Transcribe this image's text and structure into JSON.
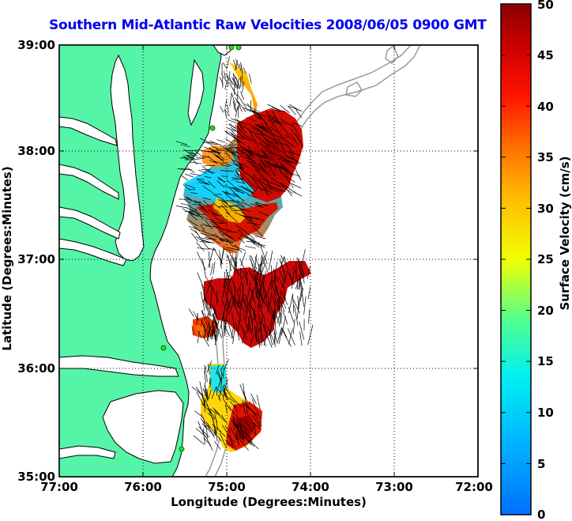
{
  "title": "Southern Mid-Atlantic Raw Velocities 2008/06/05 0900 GMT",
  "x_axis": {
    "label": "Longitude (Degrees:Minutes)",
    "ticks": [
      "77:00",
      "76:00",
      "75:00",
      "74:00",
      "73:00",
      "72:00"
    ]
  },
  "y_axis": {
    "label": "Latitude (Degrees:Minutes)",
    "ticks": [
      "39:00",
      "38:00",
      "37:00",
      "36:00",
      "35:00"
    ]
  },
  "colorbar": {
    "label": "Surface Velocity (cm/s)",
    "ticks": [
      "50",
      "45",
      "40",
      "35",
      "30",
      "25",
      "20",
      "15",
      "10",
      "5",
      "0"
    ],
    "range": [
      0,
      50
    ],
    "colormap": "jet"
  },
  "colors": {
    "title": "#0000ee",
    "land": "#55f5a8",
    "coastline": "#000000",
    "bathymetry": "#9a9a9a",
    "station_marker": "#22dd22"
  },
  "grid": "dotted",
  "extent": {
    "lon": [
      -77,
      -72
    ],
    "lat": [
      35,
      39
    ]
  }
}
